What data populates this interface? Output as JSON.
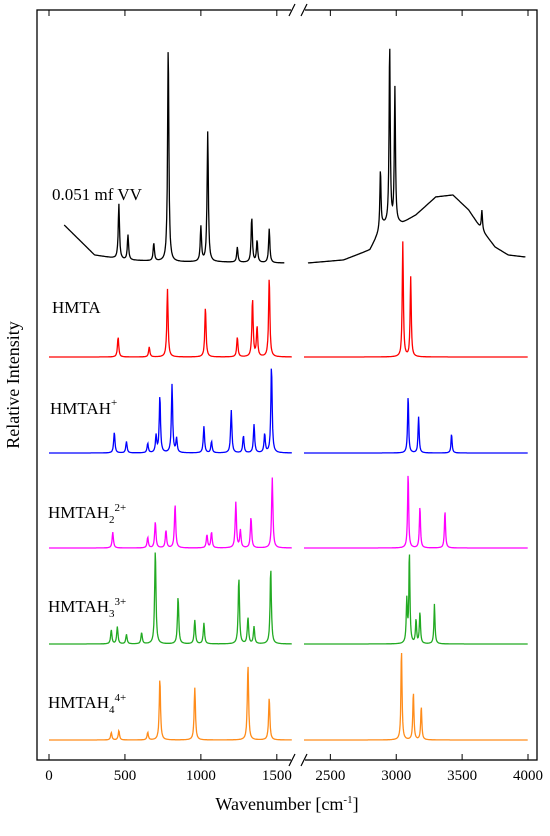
{
  "chart_data": {
    "type": "line",
    "xlabel": "Wavenumber [cm",
    "xlabel_sup": "-1",
    "xlabel_end": "]",
    "ylabel": "Relative Intensity",
    "x_segments": [
      {
        "range": [
          0,
          1600
        ],
        "ticks": [
          0,
          500,
          1000,
          1500
        ]
      },
      {
        "range": [
          2300,
          4000
        ],
        "ticks": [
          2500,
          3000,
          3500,
          4000
        ]
      }
    ],
    "tick_labels": [
      "0",
      "500",
      "1000",
      "1500",
      "2500",
      "3000",
      "3500",
      "4000"
    ],
    "axis_break": true,
    "series": [
      {
        "name": "0.051 mf VV",
        "color": "#000000",
        "peaks_low": [
          [
            460,
            55
          ],
          [
            520,
            25
          ],
          [
            690,
            18
          ],
          [
            785,
            218
          ],
          [
            1000,
            35
          ],
          [
            1045,
            130
          ],
          [
            1240,
            15
          ],
          [
            1335,
            45
          ],
          [
            1370,
            22
          ],
          [
            1450,
            34
          ]
        ],
        "peaks_high": [
          [
            2880,
            60
          ],
          [
            2950,
            180
          ],
          [
            2990,
            135
          ],
          [
            3650,
            20
          ]
        ],
        "baseline_low": [
          [
            100,
            40
          ],
          [
            300,
            10
          ],
          [
            500,
            5
          ],
          [
            800,
            3
          ],
          [
            1100,
            3
          ],
          [
            1500,
            2
          ],
          [
            1550,
            2
          ]
        ],
        "baseline_high": [
          [
            2330,
            2
          ],
          [
            2600,
            5
          ],
          [
            2800,
            15
          ],
          [
            2900,
            40
          ],
          [
            3050,
            42
          ],
          [
            3150,
            50
          ],
          [
            3300,
            68
          ],
          [
            3430,
            70
          ],
          [
            3550,
            55
          ],
          [
            3650,
            35
          ],
          [
            3750,
            18
          ],
          [
            3850,
            10
          ],
          [
            3980,
            8
          ]
        ]
      },
      {
        "name": "HMTA",
        "color": "#ff0000",
        "peaks_low": [
          [
            455,
            20
          ],
          [
            660,
            10
          ],
          [
            780,
            68
          ],
          [
            1030,
            50
          ],
          [
            1240,
            20
          ],
          [
            1340,
            58
          ],
          [
            1370,
            30
          ],
          [
            1450,
            80
          ]
        ],
        "peaks_high": [
          [
            3050,
            115
          ],
          [
            3110,
            80
          ]
        ]
      },
      {
        "name": "HMTAH",
        "sup": "+",
        "color": "#0000ff",
        "peaks_low": [
          [
            430,
            22
          ],
          [
            510,
            12
          ],
          [
            650,
            10
          ],
          [
            705,
            18
          ],
          [
            730,
            60
          ],
          [
            810,
            72
          ],
          [
            840,
            15
          ],
          [
            1020,
            28
          ],
          [
            1070,
            12
          ],
          [
            1200,
            45
          ],
          [
            1280,
            18
          ],
          [
            1350,
            30
          ],
          [
            1420,
            20
          ],
          [
            1465,
            92
          ]
        ],
        "peaks_high": [
          [
            3090,
            60
          ],
          [
            3170,
            38
          ],
          [
            3420,
            20
          ]
        ]
      },
      {
        "name": "HMTAH",
        "sub": "2",
        "sup": "2+",
        "color": "#ff00ff",
        "peaks_low": [
          [
            420,
            18
          ],
          [
            650,
            12
          ],
          [
            700,
            30
          ],
          [
            770,
            20
          ],
          [
            830,
            50
          ],
          [
            1040,
            15
          ],
          [
            1070,
            18
          ],
          [
            1230,
            52
          ],
          [
            1260,
            20
          ],
          [
            1330,
            35
          ],
          [
            1470,
            80
          ]
        ],
        "peaks_high": [
          [
            3090,
            85
          ],
          [
            3180,
            47
          ],
          [
            3370,
            42
          ]
        ]
      },
      {
        "name": "HMTAH",
        "sub": "3",
        "sup": "3+",
        "color": "#22aa22",
        "peaks_low": [
          [
            410,
            15
          ],
          [
            450,
            18
          ],
          [
            510,
            10
          ],
          [
            610,
            12
          ],
          [
            700,
            100
          ],
          [
            850,
            50
          ],
          [
            960,
            25
          ],
          [
            1020,
            22
          ],
          [
            1250,
            70
          ],
          [
            1310,
            28
          ],
          [
            1350,
            18
          ],
          [
            1460,
            80
          ]
        ],
        "peaks_high": [
          [
            3080,
            45
          ],
          [
            3100,
            95
          ],
          [
            3150,
            25
          ],
          [
            3180,
            33
          ],
          [
            3290,
            42
          ]
        ]
      },
      {
        "name": "HMTAH",
        "sub": "4",
        "sup": "4+",
        "color": "#ff8c1a",
        "peaks_low": [
          [
            410,
            8
          ],
          [
            460,
            10
          ],
          [
            650,
            8
          ],
          [
            730,
            65
          ],
          [
            960,
            55
          ],
          [
            1310,
            80
          ],
          [
            1450,
            45
          ]
        ],
        "peaks_high": [
          [
            3040,
            95
          ],
          [
            3130,
            50
          ],
          [
            3190,
            35
          ]
        ]
      }
    ]
  }
}
